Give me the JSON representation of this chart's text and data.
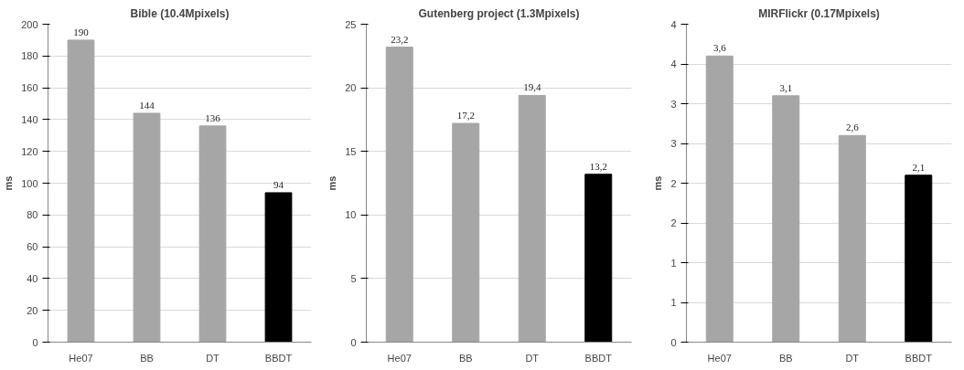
{
  "chart_data": [
    {
      "type": "bar",
      "title": "Bible (10.4Mpixels)",
      "ylabel": "ms",
      "categories": [
        "He07",
        "BB",
        "DT",
        "BBDT"
      ],
      "values": [
        190,
        144,
        136,
        94
      ],
      "colors": [
        "#a6a6a6",
        "#a6a6a6",
        "#a6a6a6",
        "#000000"
      ],
      "ylim": [
        0,
        200
      ],
      "yticks": [
        0,
        20,
        40,
        60,
        80,
        100,
        120,
        140,
        160,
        180,
        200
      ],
      "grid": "y",
      "data_labels": true
    },
    {
      "type": "bar",
      "title": "Gutenberg project (1.3Mpixels)",
      "ylabel": "ms",
      "categories": [
        "He07",
        "BB",
        "DT",
        "BBDT"
      ],
      "values": [
        23.2,
        17.2,
        19.4,
        13.2
      ],
      "value_labels": [
        "23,2",
        "17,2",
        "19,4",
        "13,2"
      ],
      "colors": [
        "#a6a6a6",
        "#a6a6a6",
        "#a6a6a6",
        "#000000"
      ],
      "ylim": [
        0,
        25
      ],
      "yticks": [
        0,
        5,
        10,
        15,
        20,
        25
      ],
      "grid": "y"
    },
    {
      "type": "bar",
      "title": "MIRFlickr (0.17Mpixels)",
      "ylabel": "ms",
      "categories": [
        "He07",
        "BB",
        "DT",
        "BBDT"
      ],
      "values": [
        3.6,
        3.1,
        2.6,
        2.1
      ],
      "value_labels": [
        "3,6",
        "3,1",
        "2,6",
        "2,1"
      ],
      "colors": [
        "#a6a6a6",
        "#a6a6a6",
        "#a6a6a6",
        "#000000"
      ],
      "ylim": [
        0,
        4
      ],
      "yticks": [
        0,
        {
          "value": 0.5,
          "label": "1"
        },
        1,
        {
          "value": 1.5,
          "label": "2"
        },
        2,
        {
          "value": 2.5,
          "label": "3"
        },
        3,
        {
          "value": 3.5,
          "label": "4"
        },
        4
      ],
      "grid": "y"
    }
  ]
}
